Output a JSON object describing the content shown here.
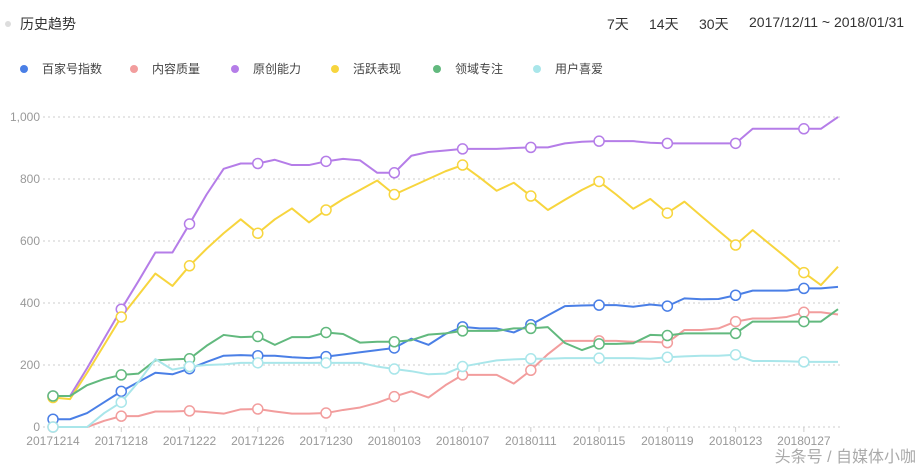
{
  "header": {
    "title": "历史趋势",
    "ranges": [
      "7天",
      "14天",
      "30天"
    ],
    "date_range": "2017/12/11 ~ 2018/01/31"
  },
  "watermark": "头条号 / 自媒体小咖",
  "chart_data": {
    "type": "line",
    "title": "",
    "xlabel": "",
    "ylabel": "",
    "ylim": [
      0,
      1000
    ],
    "y_ticks": [
      "0",
      "200",
      "400",
      "600",
      "800",
      "1,000"
    ],
    "grid": true,
    "legend_placement": "top",
    "marker_every": 4,
    "categories": [
      "20171214",
      "20171215",
      "20171216",
      "20171217",
      "20171218",
      "20171219",
      "20171220",
      "20171221",
      "20171222",
      "20171223",
      "20171224",
      "20171225",
      "20171226",
      "20171227",
      "20171228",
      "20171229",
      "20171230",
      "20171231",
      "20180101",
      "20180102",
      "20180103",
      "20180104",
      "20180105",
      "20180106",
      "20180107",
      "20180108",
      "20180109",
      "20180110",
      "20180111",
      "20180112",
      "20180113",
      "20180114",
      "20180115",
      "20180116",
      "20180117",
      "20180118",
      "20180119",
      "20180120",
      "20180121",
      "20180122",
      "20180123",
      "20180124",
      "20180125",
      "20180126",
      "20180127",
      "20180128",
      "20180129"
    ],
    "series": [
      {
        "name": "百家号指数",
        "color": "#4a7fe6",
        "values": [
          25,
          25,
          45,
          80,
          115,
          145,
          175,
          170,
          188,
          210,
          230,
          232,
          230,
          230,
          225,
          222,
          227,
          234,
          241,
          248,
          255,
          285,
          265,
          300,
          323,
          318,
          318,
          305,
          330,
          360,
          390,
          392,
          393,
          393,
          388,
          395,
          390,
          415,
          412,
          413,
          425,
          440,
          440,
          440,
          447,
          447,
          452
        ]
      },
      {
        "name": "内容质量",
        "color": "#f29d9d",
        "values": [
          0,
          0,
          0,
          20,
          35,
          35,
          50,
          50,
          52,
          48,
          43,
          57,
          58,
          50,
          43,
          43,
          45,
          55,
          63,
          78,
          98,
          115,
          95,
          135,
          168,
          168,
          168,
          140,
          183,
          235,
          278,
          278,
          278,
          278,
          275,
          275,
          272,
          313,
          313,
          318,
          340,
          350,
          350,
          355,
          370,
          370,
          363
        ]
      },
      {
        "name": "原创能力",
        "color": "#b57de8",
        "values": [
          100,
          100,
          190,
          285,
          380,
          470,
          563,
          563,
          655,
          750,
          833,
          850,
          850,
          862,
          845,
          845,
          857,
          865,
          860,
          820,
          820,
          875,
          887,
          892,
          897,
          897,
          897,
          900,
          902,
          902,
          915,
          920,
          922,
          922,
          922,
          917,
          915,
          915,
          915,
          915,
          915,
          962,
          962,
          962,
          962,
          962,
          1000
        ]
      },
      {
        "name": "活跃表现",
        "color": "#f7d53e",
        "values": [
          95,
          90,
          175,
          265,
          355,
          425,
          495,
          455,
          520,
          575,
          625,
          670,
          625,
          670,
          705,
          660,
          700,
          735,
          765,
          795,
          750,
          775,
          800,
          825,
          845,
          805,
          762,
          788,
          745,
          700,
          733,
          765,
          792,
          750,
          704,
          736,
          690,
          727,
          680,
          633,
          587,
          635,
          590,
          545,
          498,
          458,
          517
        ]
      },
      {
        "name": "领域专注",
        "color": "#62b97e",
        "values": [
          100,
          100,
          135,
          155,
          168,
          172,
          215,
          218,
          220,
          262,
          297,
          290,
          292,
          265,
          290,
          290,
          305,
          300,
          272,
          275,
          275,
          280,
          298,
          302,
          310,
          310,
          310,
          318,
          318,
          322,
          271,
          248,
          268,
          268,
          270,
          297,
          295,
          302,
          302,
          302,
          302,
          340,
          340,
          340,
          340,
          340,
          380
        ]
      },
      {
        "name": "用户喜爱",
        "color": "#a9e6ea",
        "values": [
          0,
          0,
          0,
          45,
          80,
          145,
          219,
          185,
          195,
          200,
          202,
          207,
          207,
          207,
          207,
          207,
          207,
          207,
          207,
          195,
          187,
          180,
          170,
          172,
          195,
          205,
          215,
          218,
          220,
          220,
          222,
          222,
          222,
          222,
          222,
          220,
          225,
          228,
          230,
          230,
          233,
          213,
          213,
          212,
          210,
          210,
          210
        ]
      }
    ]
  }
}
